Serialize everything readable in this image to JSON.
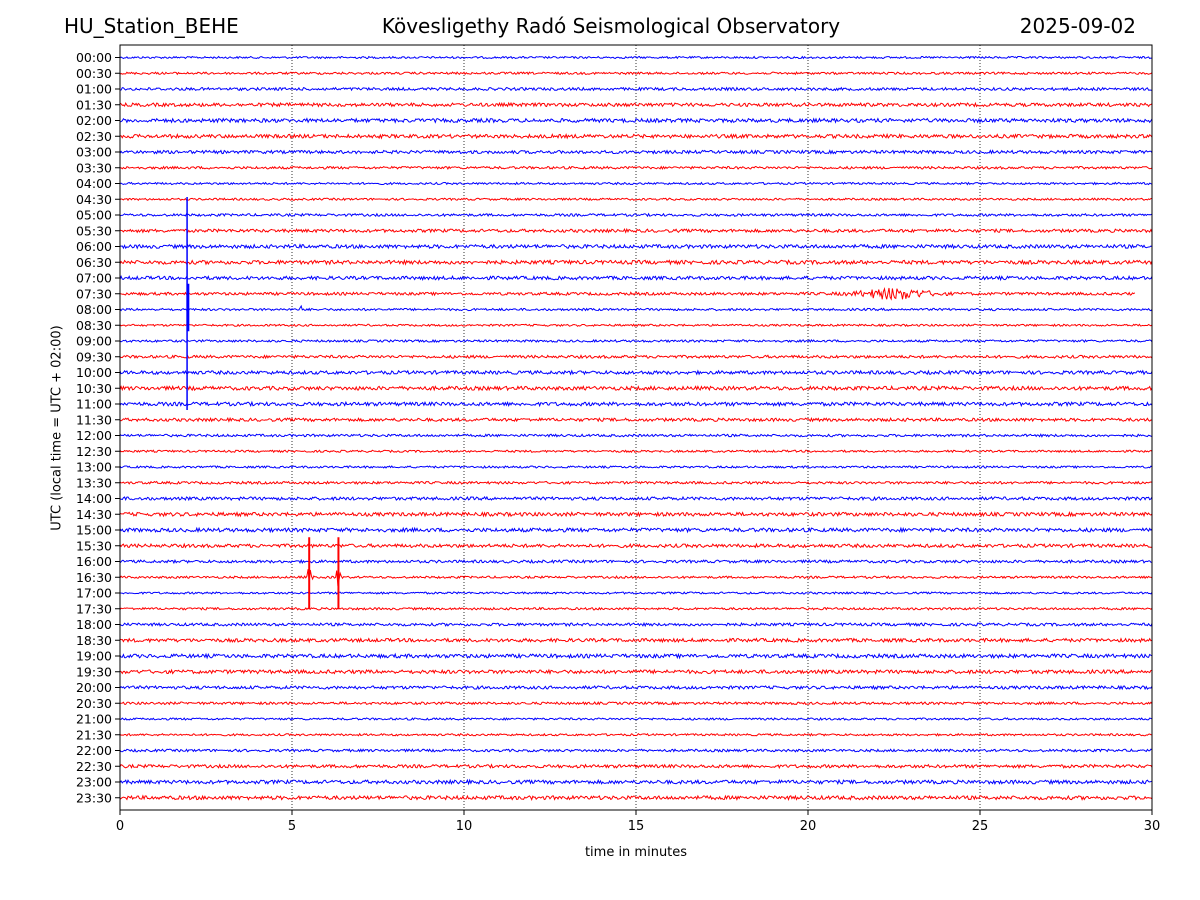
{
  "header": {
    "station": "HU_Station_BEHE",
    "observatory": "Kövesligethy Radó Seismological Observatory",
    "date": "2025-09-02"
  },
  "chart_data": {
    "type": "line",
    "xlabel": "time in minutes",
    "ylabel": "UTC (local time = UTC + 02:00)",
    "xlim": [
      0,
      30
    ],
    "xticks": [
      0,
      5,
      10,
      15,
      20,
      25,
      30
    ],
    "xgrid": "dotted-vertical",
    "row_labels": [
      "00:00",
      "00:30",
      "01:00",
      "01:30",
      "02:00",
      "02:30",
      "03:00",
      "03:30",
      "04:00",
      "04:30",
      "05:00",
      "05:30",
      "06:00",
      "06:30",
      "07:00",
      "07:30",
      "08:00",
      "08:30",
      "09:00",
      "09:30",
      "10:00",
      "10:30",
      "11:00",
      "11:30",
      "12:00",
      "12:30",
      "13:00",
      "13:30",
      "14:00",
      "14:30",
      "15:00",
      "15:30",
      "16:00",
      "16:30",
      "17:00",
      "17:30",
      "18:00",
      "18:30",
      "19:00",
      "19:30",
      "20:00",
      "20:30",
      "21:00",
      "21:30",
      "22:00",
      "22:30",
      "23:00",
      "23:30"
    ],
    "trace_colors": [
      "#0000ff",
      "#ff0000"
    ],
    "color_rule": "alternating rows: :00 blue, :30 red",
    "events": [
      {
        "row": "05:00",
        "minute": 1.95,
        "note": "large vertical spike spanning rows 05:00–11:00"
      },
      {
        "row": "07:30",
        "minute": 22.5,
        "note": "emergent burst, minutes ~21.2–24"
      },
      {
        "row": "08:00",
        "minute": 5.3,
        "note": "small spike"
      },
      {
        "row": "16:30",
        "minute": 5.5,
        "note": "strong burst"
      },
      {
        "row": "16:30",
        "minute": 6.35,
        "note": "strong burst"
      }
    ],
    "last_row_07_30_ends_at_minute": 29.5
  },
  "colors": {
    "blue_trace": "#0000ff",
    "red_trace": "#ff0000",
    "grid": "#000000",
    "background": "#ffffff"
  }
}
